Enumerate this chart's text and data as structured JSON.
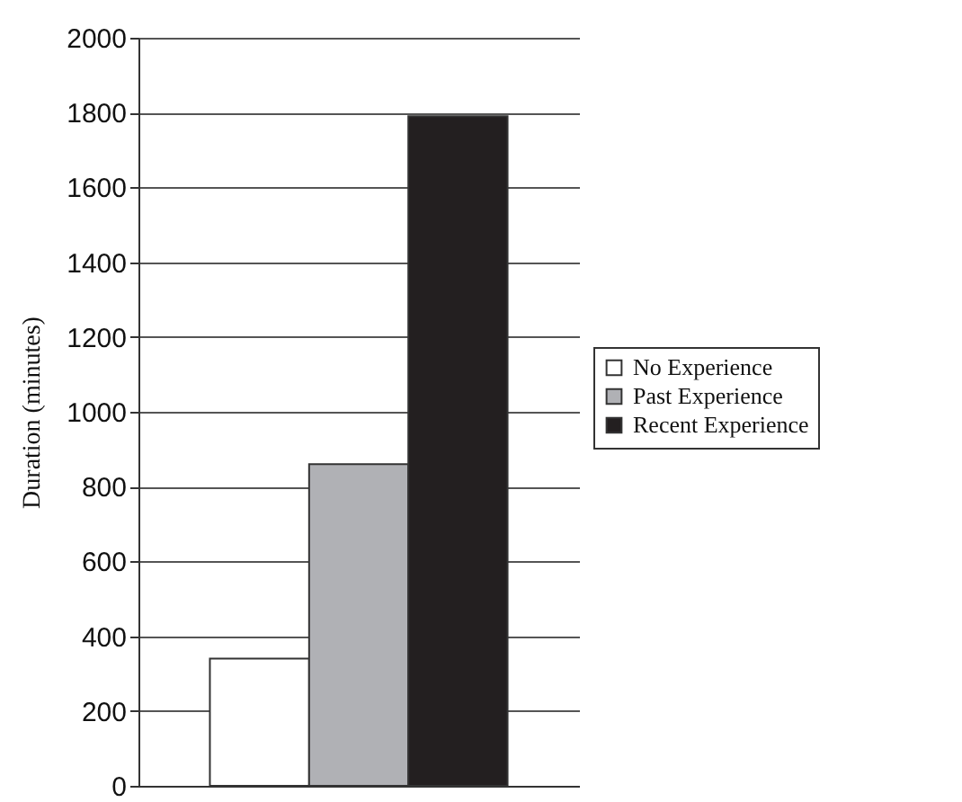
{
  "chart_data": {
    "type": "bar",
    "ylabel": "Duration (minutes)",
    "categories": [
      null
    ],
    "series": [
      {
        "name": "No Experience",
        "color": "#ffffff",
        "values": [
          340
        ]
      },
      {
        "name": "Past Experience",
        "color": "#b0b1b5",
        "values": [
          860
        ]
      },
      {
        "name": "Recent Experience",
        "color": "#231f20",
        "values": [
          1790
        ]
      }
    ],
    "ylim": [
      0,
      2000
    ],
    "yticks": [
      0,
      200,
      400,
      600,
      800,
      1000,
      1200,
      1400,
      1600,
      1800,
      2000
    ],
    "grid": "y",
    "legend": "right"
  }
}
